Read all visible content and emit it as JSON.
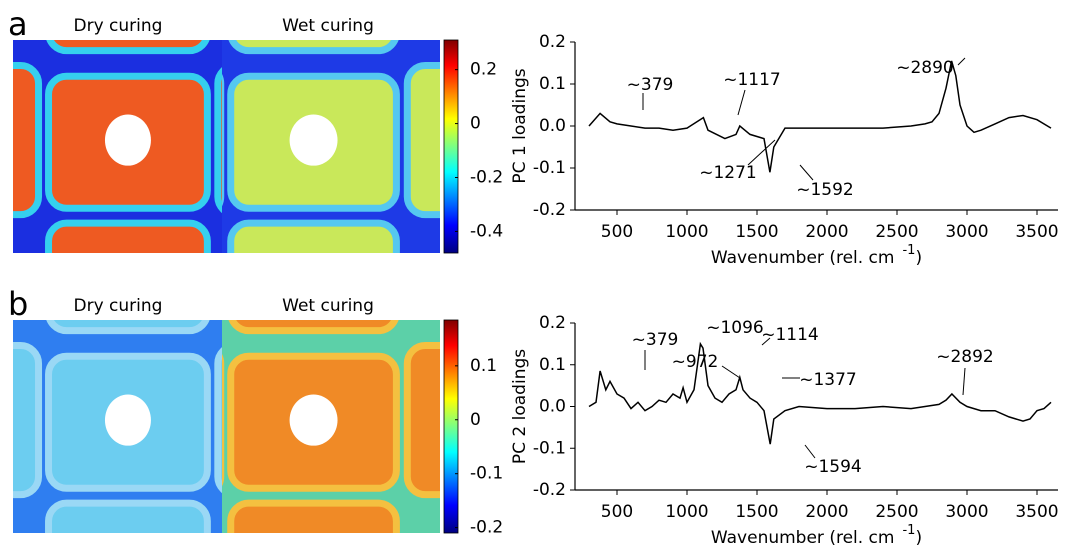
{
  "chart_data": [
    {
      "type": "map",
      "panel_label": "a",
      "image_labels": [
        "Dry curing",
        "Wet curing"
      ],
      "colorbar_lim": [
        -0.48,
        0.31
      ],
      "colorbar_ticks": [
        0.2,
        0,
        -0.2,
        -0.4
      ]
    },
    {
      "type": "line",
      "ylabel": "PC 1 loadings",
      "xlabel": [
        "Wavenumber (rel. cm",
        "-1",
        ")"
      ],
      "color": "#000000",
      "x": [
        300,
        379,
        450,
        500,
        600,
        700,
        800,
        900,
        1000,
        1117,
        1150,
        1271,
        1350,
        1377,
        1450,
        1550,
        1592,
        1620,
        1700,
        1800,
        2000,
        2200,
        2400,
        2600,
        2700,
        2750,
        2800,
        2850,
        2890,
        2920,
        2950,
        3000,
        3050,
        3100,
        3200,
        3300,
        3400,
        3500,
        3600
      ],
      "values": [
        0.0,
        0.03,
        0.01,
        0.005,
        0.0,
        -0.005,
        -0.005,
        -0.01,
        -0.005,
        0.02,
        -0.01,
        -0.03,
        -0.02,
        0.0,
        -0.02,
        -0.03,
        -0.11,
        -0.05,
        -0.005,
        -0.005,
        -0.005,
        -0.005,
        -0.005,
        0.0,
        0.005,
        0.01,
        0.03,
        0.09,
        0.155,
        0.12,
        0.05,
        0.0,
        -0.015,
        -0.01,
        0.005,
        0.02,
        0.025,
        0.015,
        -0.005
      ],
      "xlim": [
        200,
        3650
      ],
      "ylim": [
        -0.2,
        0.2
      ],
      "xticks": [
        500,
        1000,
        1500,
        2000,
        2500,
        3000,
        3500
      ],
      "yticks": [
        -0.2,
        -0.1,
        {
          "value": 0,
          "label": "0.0"
        },
        0.1,
        0.2
      ],
      "annotations": [
        "~379",
        "~1117",
        "~1271",
        "~1592",
        "~2890"
      ]
    },
    {
      "type": "map",
      "panel_label": "b",
      "image_labels": [
        "Dry curing",
        "Wet curing"
      ],
      "colorbar_lim": [
        -0.21,
        0.185
      ],
      "colorbar_ticks": [
        0.1,
        0,
        -0.1,
        -0.2
      ]
    },
    {
      "type": "line",
      "ylabel": "PC 2 loadings",
      "xlabel": [
        "Wavenumber (rel. cm",
        "-1",
        ")"
      ],
      "color": "#000000",
      "x": [
        300,
        350,
        379,
        420,
        450,
        500,
        550,
        600,
        650,
        700,
        750,
        800,
        850,
        900,
        950,
        972,
        1000,
        1050,
        1096,
        1114,
        1150,
        1200,
        1250,
        1300,
        1350,
        1377,
        1400,
        1450,
        1500,
        1550,
        1594,
        1620,
        1700,
        1800,
        2000,
        2200,
        2400,
        2600,
        2800,
        2850,
        2892,
        2950,
        3000,
        3100,
        3200,
        3300,
        3400,
        3450,
        3500,
        3550,
        3600
      ],
      "values": [
        0.0,
        0.01,
        0.085,
        0.04,
        0.06,
        0.03,
        0.02,
        -0.005,
        0.01,
        -0.01,
        0.0,
        0.015,
        0.01,
        0.03,
        0.02,
        0.045,
        0.01,
        0.04,
        0.15,
        0.14,
        0.05,
        0.02,
        0.01,
        0.03,
        0.04,
        0.07,
        0.04,
        0.02,
        0.01,
        -0.01,
        -0.09,
        -0.03,
        -0.01,
        0.0,
        -0.005,
        -0.005,
        0.0,
        -0.005,
        0.005,
        0.015,
        0.03,
        0.01,
        0.0,
        -0.01,
        -0.01,
        -0.025,
        -0.035,
        -0.03,
        -0.01,
        -0.005,
        0.01
      ],
      "xlim": [
        200,
        3650
      ],
      "ylim": [
        -0.2,
        0.2
      ],
      "xticks": [
        500,
        1000,
        1500,
        2000,
        2500,
        3000,
        3500
      ],
      "yticks": [
        -0.2,
        -0.1,
        {
          "value": 0,
          "label": "0.0"
        },
        0.1,
        0.2
      ],
      "annotations": [
        "~379",
        "~972",
        "~1096",
        "~1114",
        "~1377",
        "~2892",
        "~1594"
      ]
    }
  ]
}
